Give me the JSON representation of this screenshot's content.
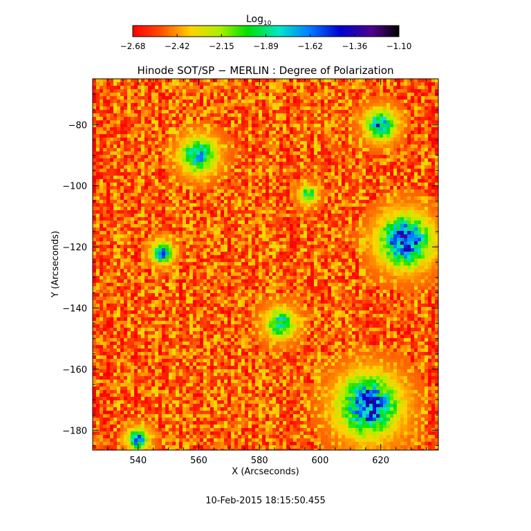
{
  "colorbar": {
    "label_main": "Log",
    "label_sub": "10",
    "ticks": [
      "−2.68",
      "−2.42",
      "−2.15",
      "−1.89",
      "−1.62",
      "−1.36",
      "−1.10"
    ],
    "range": [
      -2.68,
      -1.1
    ],
    "colormap": "rainbow (red → orange → yellow → green → cyan → blue → purple → black)"
  },
  "chart_data": {
    "type": "heatmap",
    "title": "Hinode SOT/SP − MERLIN : Degree of Polarization",
    "xlabel": "X (Arcseconds)",
    "ylabel": "Y (Arcseconds)",
    "xlim": [
      525,
      639
    ],
    "ylim": [
      -186.5,
      -65
    ],
    "x_ticks": [
      540,
      560,
      580,
      600,
      620
    ],
    "y_ticks": [
      -80,
      -100,
      -120,
      -140,
      -160,
      -180
    ],
    "value_scale": "log10",
    "background_level": -2.5,
    "high_polarization_regions": [
      {
        "x": 628,
        "y": -118,
        "size": 8.5,
        "peak": -1.25
      },
      {
        "x": 616,
        "y": -172,
        "size": 10,
        "peak": -1.3
      },
      {
        "x": 560,
        "y": -90,
        "size": 6,
        "peak": -1.6
      },
      {
        "x": 587,
        "y": -145,
        "size": 5,
        "peak": -1.7
      },
      {
        "x": 548,
        "y": -122,
        "size": 3.5,
        "peak": -1.45
      },
      {
        "x": 540,
        "y": -183,
        "size": 3.5,
        "peak": -1.45
      },
      {
        "x": 620,
        "y": -80,
        "size": 5,
        "peak": -1.5
      },
      {
        "x": 596,
        "y": -103,
        "size": 3,
        "peak": -1.75
      }
    ],
    "grid": false,
    "legend": "none"
  },
  "timestamp": "10-Feb-2015 18:15:50.455"
}
